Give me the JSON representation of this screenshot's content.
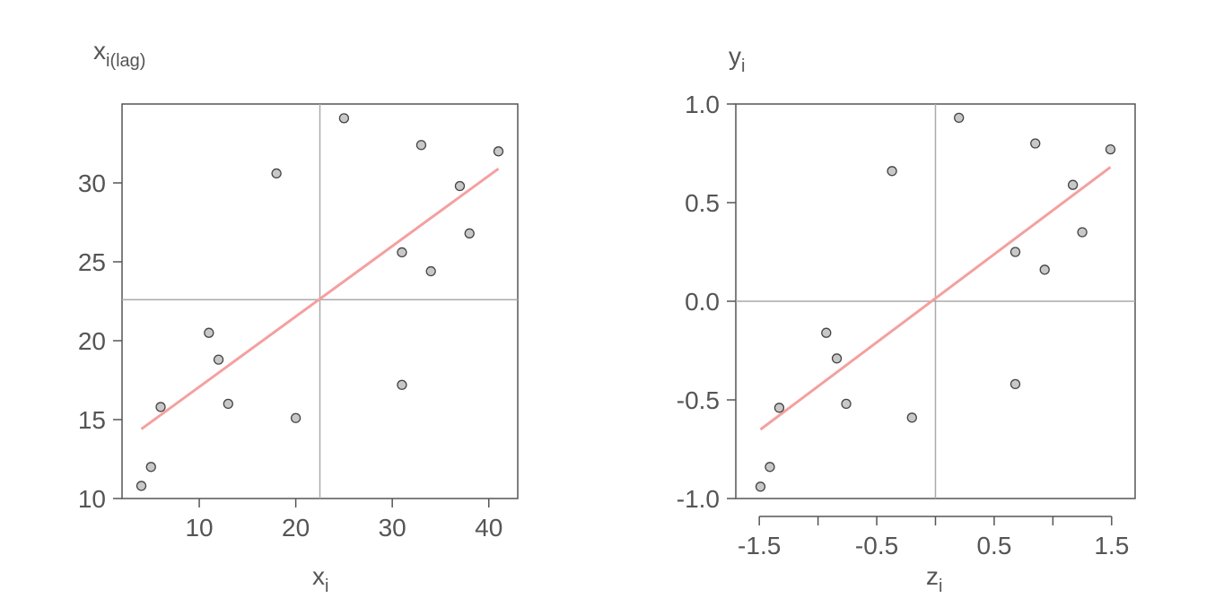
{
  "chart_data": [
    {
      "type": "scatter",
      "title": "",
      "xlabel": "x",
      "xlabel_sub": "i",
      "ylabel": "x",
      "ylabel_sub": "i(lag)",
      "xlim": [
        2,
        43
      ],
      "ylim": [
        10,
        35
      ],
      "x_ticks": [
        10,
        20,
        30,
        40
      ],
      "y_ticks": [
        10,
        15,
        20,
        25,
        30
      ],
      "grid": false,
      "reference_lines": {
        "vertical": 22.5,
        "horizontal": 22.6
      },
      "point_color": "#c8c8c8",
      "point_edge": "#444444",
      "line_color": "#f4a0a0",
      "points": [
        {
          "x": 4,
          "y": 10.8
        },
        {
          "x": 5,
          "y": 12.0
        },
        {
          "x": 6,
          "y": 15.8
        },
        {
          "x": 11,
          "y": 20.5
        },
        {
          "x": 12,
          "y": 18.8
        },
        {
          "x": 13,
          "y": 16.0
        },
        {
          "x": 18,
          "y": 30.6
        },
        {
          "x": 20,
          "y": 15.1
        },
        {
          "x": 25,
          "y": 34.1
        },
        {
          "x": 31,
          "y": 25.6
        },
        {
          "x": 31,
          "y": 17.2
        },
        {
          "x": 33,
          "y": 32.4
        },
        {
          "x": 34,
          "y": 24.4
        },
        {
          "x": 37,
          "y": 29.8
        },
        {
          "x": 38,
          "y": 26.8
        },
        {
          "x": 41,
          "y": 32.0
        }
      ],
      "fit_line": [
        {
          "x": 4,
          "y": 14.4
        },
        {
          "x": 41,
          "y": 30.9
        }
      ]
    },
    {
      "type": "scatter",
      "title": "",
      "xlabel": "z",
      "xlabel_sub": "i",
      "ylabel": "y",
      "ylabel_sub": "i",
      "xlim": [
        -1.7,
        1.7
      ],
      "ylim": [
        -1.0,
        1.0
      ],
      "x_ticks": [
        -1.5,
        -1.0,
        -0.5,
        0.0,
        0.5,
        1.0,
        1.5
      ],
      "x_tick_labels": [
        "-1.5",
        "",
        "-0.5",
        "",
        "0.5",
        "",
        "1.5"
      ],
      "y_ticks": [
        -1.0,
        -0.5,
        0.0,
        0.5,
        1.0
      ],
      "y_tick_labels": [
        "-1.0",
        "-0.5",
        "0.0",
        "0.5",
        "1.0"
      ],
      "grid": false,
      "reference_lines": {
        "vertical": 0.0,
        "horizontal": 0.0
      },
      "point_color": "#c8c8c8",
      "point_edge": "#444444",
      "line_color": "#f4a0a0",
      "points": [
        {
          "x": -1.49,
          "y": -0.94
        },
        {
          "x": -1.41,
          "y": -0.84
        },
        {
          "x": -1.33,
          "y": -0.54
        },
        {
          "x": -0.93,
          "y": -0.16
        },
        {
          "x": -0.84,
          "y": -0.29
        },
        {
          "x": -0.76,
          "y": -0.52
        },
        {
          "x": -0.37,
          "y": 0.66
        },
        {
          "x": -0.2,
          "y": -0.59
        },
        {
          "x": 0.2,
          "y": 0.93
        },
        {
          "x": 0.68,
          "y": 0.25
        },
        {
          "x": 0.68,
          "y": -0.42
        },
        {
          "x": 0.85,
          "y": 0.8
        },
        {
          "x": 0.93,
          "y": 0.16
        },
        {
          "x": 1.17,
          "y": 0.59
        },
        {
          "x": 1.25,
          "y": 0.35
        },
        {
          "x": 1.49,
          "y": 0.77
        }
      ],
      "fit_line": [
        {
          "x": -1.49,
          "y": -0.65
        },
        {
          "x": 1.49,
          "y": 0.68
        }
      ]
    }
  ]
}
